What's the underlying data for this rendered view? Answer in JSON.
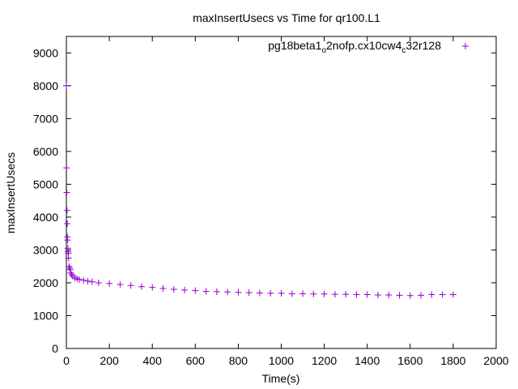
{
  "chart_data": {
    "type": "scatter",
    "title": "maxInsertUsecs vs Time for qr100.L1",
    "xlabel": "Time(s)",
    "ylabel": "maxInsertUsecs",
    "xlim": [
      0,
      2000
    ],
    "ylim": [
      0,
      9500
    ],
    "xticks": [
      "0",
      "200",
      "400",
      "600",
      "800",
      "1000",
      "1200",
      "1400",
      "1600",
      "1800",
      "2000"
    ],
    "yticks": [
      "0",
      "1000",
      "2000",
      "3000",
      "4000",
      "5000",
      "6000",
      "7000",
      "8000",
      "9000"
    ],
    "grid": false,
    "legend_position": "top-right",
    "marker": "plus",
    "series": [
      {
        "name_parts": [
          {
            "text": "pg18beta1",
            "sub": false
          },
          {
            "text": "o",
            "sub": true
          },
          {
            "text": "2nofp.cx10cw4",
            "sub": false
          },
          {
            "text": "c",
            "sub": true
          },
          {
            "text": "32r128",
            "sub": false
          }
        ],
        "color": "#9400d3",
        "points": [
          [
            0,
            8000
          ],
          [
            1,
            5500
          ],
          [
            2,
            4750
          ],
          [
            3,
            4200
          ],
          [
            4,
            3800
          ],
          [
            5,
            3400
          ],
          [
            6,
            3300
          ],
          [
            7,
            3050
          ],
          [
            8,
            2950
          ],
          [
            9,
            2900
          ],
          [
            10,
            2750
          ],
          [
            12,
            2500
          ],
          [
            15,
            2450
          ],
          [
            18,
            2400
          ],
          [
            20,
            2300
          ],
          [
            25,
            2250
          ],
          [
            30,
            2200
          ],
          [
            40,
            2150
          ],
          [
            50,
            2120
          ],
          [
            60,
            2100
          ],
          [
            80,
            2080
          ],
          [
            100,
            2050
          ],
          [
            120,
            2030
          ],
          [
            150,
            2000
          ],
          [
            200,
            1980
          ],
          [
            250,
            1950
          ],
          [
            300,
            1920
          ],
          [
            350,
            1880
          ],
          [
            400,
            1860
          ],
          [
            450,
            1830
          ],
          [
            500,
            1800
          ],
          [
            550,
            1780
          ],
          [
            600,
            1760
          ],
          [
            650,
            1740
          ],
          [
            700,
            1730
          ],
          [
            750,
            1720
          ],
          [
            800,
            1710
          ],
          [
            850,
            1700
          ],
          [
            900,
            1690
          ],
          [
            950,
            1680
          ],
          [
            1000,
            1680
          ],
          [
            1050,
            1670
          ],
          [
            1100,
            1670
          ],
          [
            1150,
            1660
          ],
          [
            1200,
            1660
          ],
          [
            1250,
            1650
          ],
          [
            1300,
            1650
          ],
          [
            1350,
            1640
          ],
          [
            1400,
            1640
          ],
          [
            1450,
            1630
          ],
          [
            1500,
            1630
          ],
          [
            1550,
            1620
          ],
          [
            1600,
            1610
          ],
          [
            1650,
            1620
          ],
          [
            1700,
            1640
          ],
          [
            1750,
            1640
          ],
          [
            1800,
            1640
          ]
        ]
      }
    ]
  }
}
